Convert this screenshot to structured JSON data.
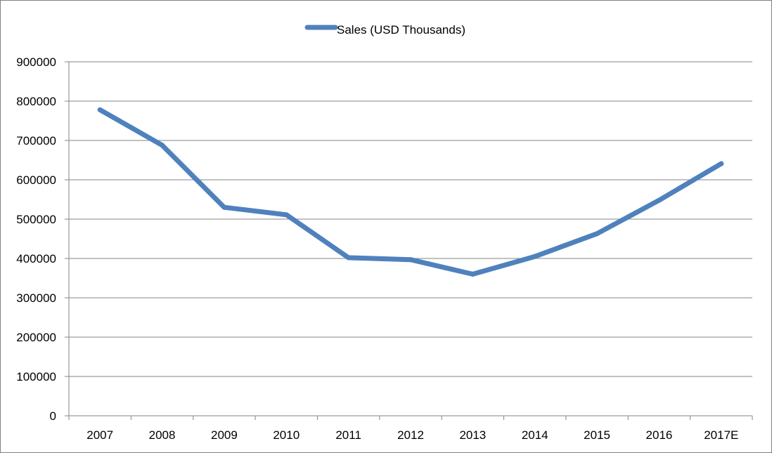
{
  "chart_data": {
    "type": "line",
    "title": "",
    "xlabel": "",
    "ylabel": "",
    "categories": [
      "2007",
      "2008",
      "2009",
      "2010",
      "2011",
      "2012",
      "2013",
      "2014",
      "2015",
      "2016",
      "2017E"
    ],
    "series": [
      {
        "name": "Sales (USD Thousands)",
        "color": "#4F81BD",
        "values": [
          778000,
          688000,
          530000,
          511000,
          402000,
          397000,
          360000,
          405000,
          463000,
          548000,
          641000
        ]
      }
    ],
    "ylim": [
      0,
      900000
    ],
    "yticks": [
      "0",
      "100000",
      "200000",
      "300000",
      "400000",
      "500000",
      "600000",
      "700000",
      "800000",
      "900000"
    ],
    "grid": "horizontal",
    "legend_position": "top-center"
  }
}
